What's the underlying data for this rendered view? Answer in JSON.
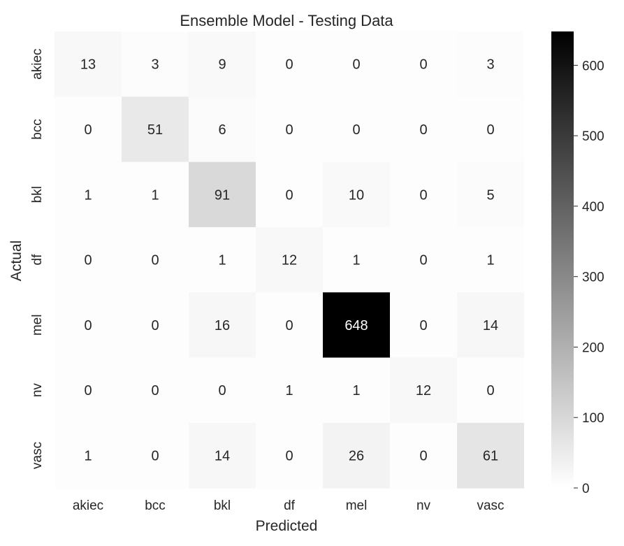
{
  "chart_data": {
    "type": "heatmap",
    "title": "Ensemble Model - Testing Data",
    "xlabel": "Predicted",
    "ylabel": "Actual",
    "row_labels": [
      "akiec",
      "bcc",
      "bkl",
      "df",
      "mel",
      "nv",
      "vasc"
    ],
    "col_labels": [
      "akiec",
      "bcc",
      "bkl",
      "df",
      "mel",
      "nv",
      "vasc"
    ],
    "values": [
      [
        13,
        3,
        9,
        0,
        0,
        0,
        3
      ],
      [
        0,
        51,
        6,
        0,
        0,
        0,
        0
      ],
      [
        1,
        1,
        91,
        0,
        10,
        0,
        5
      ],
      [
        0,
        0,
        1,
        12,
        1,
        0,
        1
      ],
      [
        0,
        0,
        16,
        0,
        648,
        0,
        14
      ],
      [
        0,
        0,
        0,
        1,
        1,
        12,
        0
      ],
      [
        1,
        0,
        14,
        0,
        26,
        0,
        61
      ]
    ],
    "colormap": "Greys",
    "vmin": 0,
    "vmax": 648,
    "colorbar_ticks": [
      0,
      100,
      200,
      300,
      400,
      500,
      600
    ],
    "colors": {
      "low": "#ffffff",
      "high": "#000000"
    }
  }
}
